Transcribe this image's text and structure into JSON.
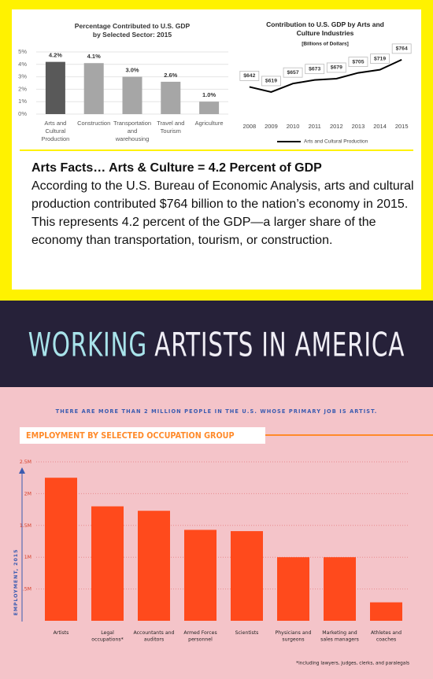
{
  "chart_data": [
    {
      "type": "bar",
      "title": "Percentage Contributed to U.S. GDP by Selected Sector: 2015",
      "categories": [
        "Arts and Cultural Production",
        "Construction",
        "Transportation and warehousing",
        "Travel and Tourism",
        "Agriculture"
      ],
      "values": [
        4.2,
        4.1,
        3.0,
        2.6,
        1.0
      ],
      "value_labels": [
        "4.2%",
        "4.1%",
        "3.0%",
        "2.6%",
        "1.0%"
      ],
      "colors": [
        "#595959",
        "#a6a6a6",
        "#a6a6a6",
        "#a6a6a6",
        "#a6a6a6"
      ],
      "ylim": [
        0,
        5
      ],
      "yticks": [
        {
          "value": 0,
          "label": "0%"
        },
        {
          "value": 1,
          "label": "1%"
        },
        {
          "value": 2,
          "label": "2%"
        },
        {
          "value": 3,
          "label": "3%"
        },
        {
          "value": 4,
          "label": "4%"
        },
        {
          "value": 5,
          "label": "5%"
        }
      ],
      "grid": true
    },
    {
      "type": "line",
      "title": "Contribution to U.S. GDP by Arts and Culture Industries",
      "subtitle": "[Billions of Dollars]",
      "categories": [
        "2008",
        "2009",
        "2010",
        "2011",
        "2012",
        "2013",
        "2014",
        "2015"
      ],
      "series": [
        {
          "name": "Arts and Cultural Production",
          "color": "#000000",
          "values": [
            642,
            619,
            657,
            673,
            679,
            705,
            719,
            764
          ],
          "value_labels": [
            "$642",
            "$619",
            "$657",
            "$673",
            "$679",
            "$705",
            "$719",
            "$764"
          ]
        }
      ],
      "ylim": [
        520,
        820
      ],
      "legend": "bottom"
    },
    {
      "type": "bar",
      "title": "EMPLOYMENT BY SELECTED OCCUPATION GROUP",
      "subtitle": "THERE ARE MORE THAN 2 MILLION PEOPLE IN THE U.S. WHOSE PRIMARY JOB IS ARTIST.",
      "y_label": "EMPLOYMENT, 2015",
      "note": "*including lawyers, judges, clerks, and paralegals",
      "categories": [
        "Artists",
        "Legal occupations*",
        "Accountants and auditors",
        "Armed Forces personnel",
        "Scientists",
        "Physicians and surgeons",
        "Marketing and sales managers",
        "Athletes and coaches"
      ],
      "values": [
        2250000,
        1800000,
        1730000,
        1430000,
        1410000,
        1000000,
        1000000,
        290000
      ],
      "color": "#ff4a1c",
      "ylim": [
        0,
        2500000
      ],
      "yticks": [
        {
          "value": 500000,
          "label": ".5M"
        },
        {
          "value": 1000000,
          "label": "1M"
        },
        {
          "value": 1500000,
          "label": "1.5M"
        },
        {
          "value": 2000000,
          "label": "2M"
        },
        {
          "value": 2500000,
          "label": "2.5M"
        }
      ],
      "grid": true
    }
  ],
  "facts": {
    "heading": "Arts Facts… Arts & Culture = 4.2 Percent of GDP",
    "body": "According to the U.S. Bureau of Economic Analysis, arts and cultural production contributed $764 billion to the nation’s economy in 2015. This represents 4.2 percent of the GDP—a larger share of the economy than transportation, tourism, or construction."
  },
  "banner": {
    "highlight": "WORKING",
    "rest": "ARTISTS IN AMERICA"
  }
}
